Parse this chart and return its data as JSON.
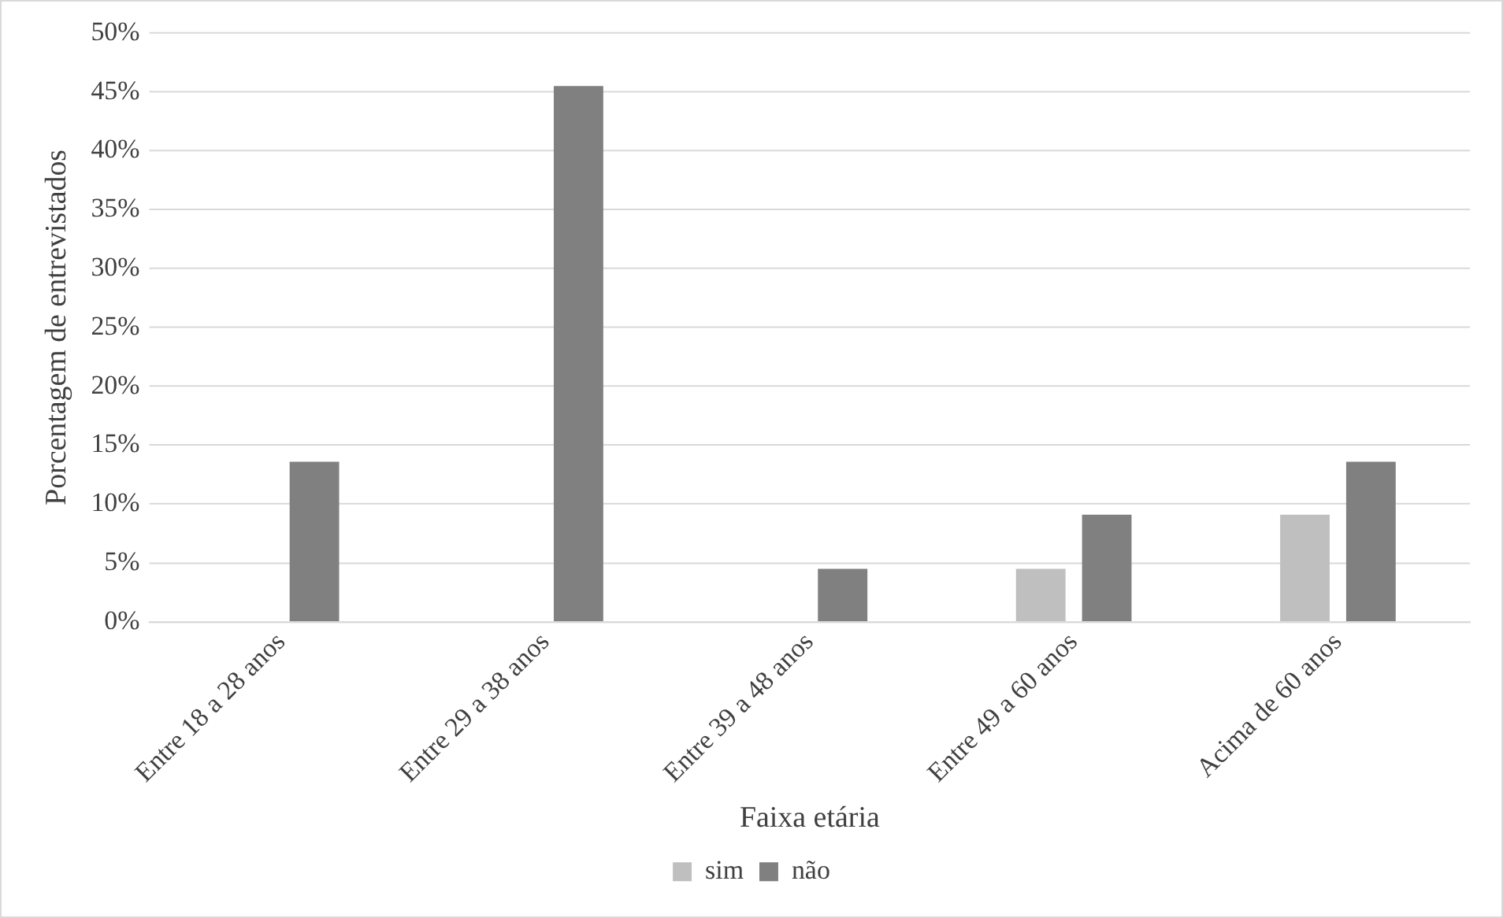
{
  "chart_data": {
    "type": "bar",
    "xlabel": "Faixa etária",
    "ylabel": "Porcentagem de entrevistados",
    "categories": [
      "Entre 18 a 28 anos",
      "Entre 29 a 38 anos",
      "Entre 39 a 48 anos",
      "Entre 49 a 60 anos",
      "Acima de 60 anos"
    ],
    "series": [
      {
        "name": "sim",
        "color": "#bfbfbf",
        "values": [
          0,
          0,
          0,
          4.5,
          9.1
        ]
      },
      {
        "name": "não",
        "color": "#808080",
        "values": [
          13.6,
          45.5,
          4.5,
          9.1,
          13.6
        ]
      }
    ],
    "ylim": [
      0,
      50
    ],
    "yticks": [
      {
        "value": 0,
        "label": "0%"
      },
      {
        "value": 5,
        "label": "5%"
      },
      {
        "value": 10,
        "label": "10%"
      },
      {
        "value": 15,
        "label": "15%"
      },
      {
        "value": 20,
        "label": "20%"
      },
      {
        "value": 25,
        "label": "25%"
      },
      {
        "value": 30,
        "label": "30%"
      },
      {
        "value": 35,
        "label": "35%"
      },
      {
        "value": 40,
        "label": "40%"
      },
      {
        "value": 45,
        "label": "45%"
      },
      {
        "value": 50,
        "label": "50%"
      }
    ],
    "grid": "y",
    "legend": "bottom"
  }
}
